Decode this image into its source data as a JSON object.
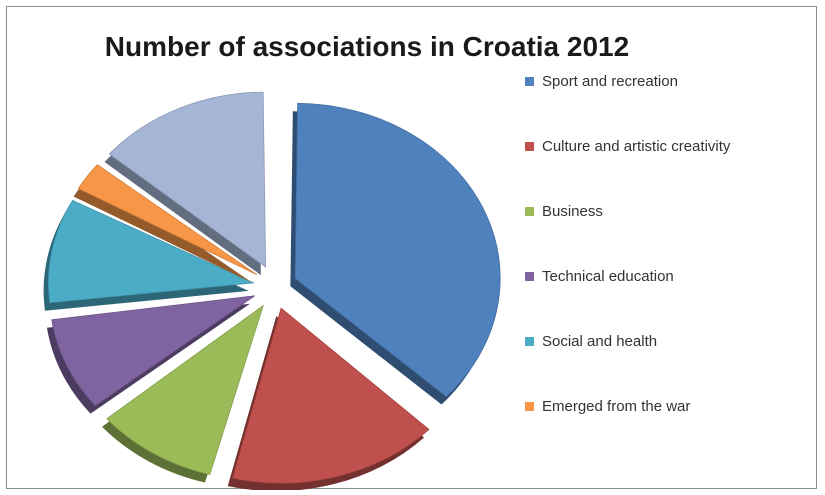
{
  "chart_data": {
    "type": "pie",
    "title": "Number of associations in Croatia 2012",
    "legend_placement": "right",
    "style": "3d-exploded",
    "slices": [
      {
        "label": "Sport and recreation",
        "value": 37,
        "color": "#4F81BD"
      },
      {
        "label": "Culture and artistic creativity",
        "value": 17,
        "color": "#C0504D"
      },
      {
        "label": "Business",
        "value": 10,
        "color": "#9BBB59"
      },
      {
        "label": "Technical education",
        "value": 9,
        "color": "#8064A2"
      },
      {
        "label": "Social and health",
        "value": 10,
        "color": "#4BACC6"
      },
      {
        "label": "Emerged from the war",
        "value": 3,
        "color": "#F79646"
      },
      {
        "label": "",
        "value": 14,
        "color": "#A5B5D6"
      }
    ]
  }
}
